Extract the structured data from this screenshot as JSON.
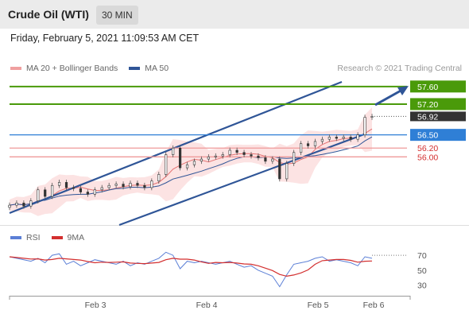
{
  "header": {
    "title": "Crude Oil (WTI)",
    "timeframe": "30 MIN"
  },
  "datetime": "Friday, February 5, 2021 11:09:53 AM CET",
  "legend": {
    "ma20_bb": "MA 20 + Bollinger Bands",
    "ma50": "MA 50"
  },
  "credit": "Research © 2021 Trading Central",
  "rsi_legend": {
    "rsi": "RSI",
    "ma9": "9MA"
  },
  "colors": {
    "ma20": "#e57373",
    "ma50": "#2f5597",
    "rsi": "#5b7fd6",
    "ma9": "#d32f2f",
    "green": "#4a9a0a",
    "blue": "#2f7fd6",
    "red": "#d32f2f",
    "dark": "#333333"
  },
  "chart_data": {
    "type": "line",
    "x_ticks": [
      "Feb 3",
      "Feb 4",
      "Feb 5",
      "Feb 6"
    ],
    "price_levels": [
      {
        "label": "57.60",
        "value": 57.6,
        "role": "resistance",
        "color": "#4a9a0a"
      },
      {
        "label": "57.20",
        "value": 57.2,
        "role": "resistance",
        "color": "#4a9a0a"
      },
      {
        "label": "56.92",
        "value": 56.92,
        "role": "last",
        "color": "#333333"
      },
      {
        "label": "56.50",
        "value": 56.5,
        "role": "pivot",
        "color": "#2f7fd6"
      },
      {
        "label": "56.20",
        "value": 56.2,
        "role": "support",
        "color": "#d32f2f"
      },
      {
        "label": "56.00",
        "value": 56.0,
        "role": "support",
        "color": "#d32f2f"
      }
    ],
    "price_series": [
      54.9,
      54.95,
      54.88,
      55.0,
      55.25,
      55.1,
      55.35,
      55.42,
      55.3,
      55.28,
      55.2,
      55.15,
      55.25,
      55.3,
      55.35,
      55.38,
      55.32,
      55.4,
      55.35,
      55.3,
      55.45,
      55.6,
      56.05,
      56.2,
      55.75,
      55.82,
      55.9,
      55.95,
      56.0,
      56.02,
      56.05,
      56.15,
      56.1,
      56.05,
      56.02,
      55.98,
      55.9,
      55.95,
      55.5,
      55.85,
      56.1,
      56.3,
      56.25,
      56.35,
      56.4,
      56.45,
      56.42,
      56.45,
      56.4,
      56.5,
      56.9,
      56.92
    ],
    "rsi_series": [
      68,
      66,
      64,
      62,
      66,
      60,
      70,
      72,
      58,
      62,
      56,
      60,
      64,
      62,
      60,
      58,
      62,
      56,
      60,
      58,
      62,
      66,
      74,
      70,
      52,
      62,
      60,
      62,
      60,
      58,
      60,
      62,
      58,
      54,
      56,
      50,
      46,
      42,
      28,
      44,
      58,
      60,
      62,
      66,
      68,
      62,
      64,
      62,
      60,
      56,
      68,
      66
    ],
    "rsi_ticks": [
      70,
      50,
      30
    ],
    "legend_position": "top-left"
  }
}
